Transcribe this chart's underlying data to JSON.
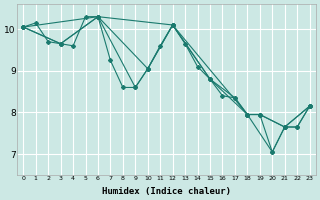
{
  "xlabel": "Humidex (Indice chaleur)",
  "background_color": "#cce8e4",
  "grid_color": "#ffffff",
  "line_color": "#1a7a6e",
  "xlim": [
    -0.5,
    23.5
  ],
  "ylim": [
    6.5,
    10.6
  ],
  "yticks": [
    7,
    8,
    9,
    10
  ],
  "xticks": [
    0,
    1,
    2,
    3,
    4,
    5,
    6,
    7,
    8,
    9,
    10,
    11,
    12,
    13,
    14,
    15,
    16,
    17,
    18,
    19,
    20,
    21,
    22,
    23
  ],
  "series": [
    {
      "x": [
        0,
        1,
        2,
        3,
        4,
        5,
        6,
        7,
        8,
        9,
        10,
        11,
        12,
        13,
        14,
        15,
        16,
        17,
        18,
        19,
        20,
        21,
        22,
        23
      ],
      "y": [
        10.05,
        10.15,
        9.7,
        9.65,
        9.6,
        10.3,
        10.3,
        9.25,
        8.6,
        8.6,
        9.05,
        9.6,
        10.1,
        9.65,
        9.1,
        8.8,
        8.4,
        8.35,
        7.95,
        7.95,
        7.05,
        7.65,
        7.65,
        8.15
      ]
    },
    {
      "x": [
        0,
        3,
        6,
        12,
        18,
        20,
        21,
        22,
        23
      ],
      "y": [
        10.05,
        9.65,
        10.3,
        10.1,
        7.95,
        7.05,
        7.65,
        7.65,
        8.15
      ]
    },
    {
      "x": [
        0,
        6,
        10,
        12,
        15,
        18,
        19,
        21,
        23
      ],
      "y": [
        10.05,
        10.3,
        9.05,
        10.1,
        8.8,
        7.95,
        7.95,
        7.65,
        8.15
      ]
    },
    {
      "x": [
        0,
        3,
        6,
        9,
        10,
        12,
        15,
        17,
        18,
        19,
        21,
        23
      ],
      "y": [
        10.05,
        9.65,
        10.3,
        8.6,
        9.05,
        10.1,
        8.8,
        8.35,
        7.95,
        7.95,
        7.65,
        8.15
      ]
    }
  ]
}
